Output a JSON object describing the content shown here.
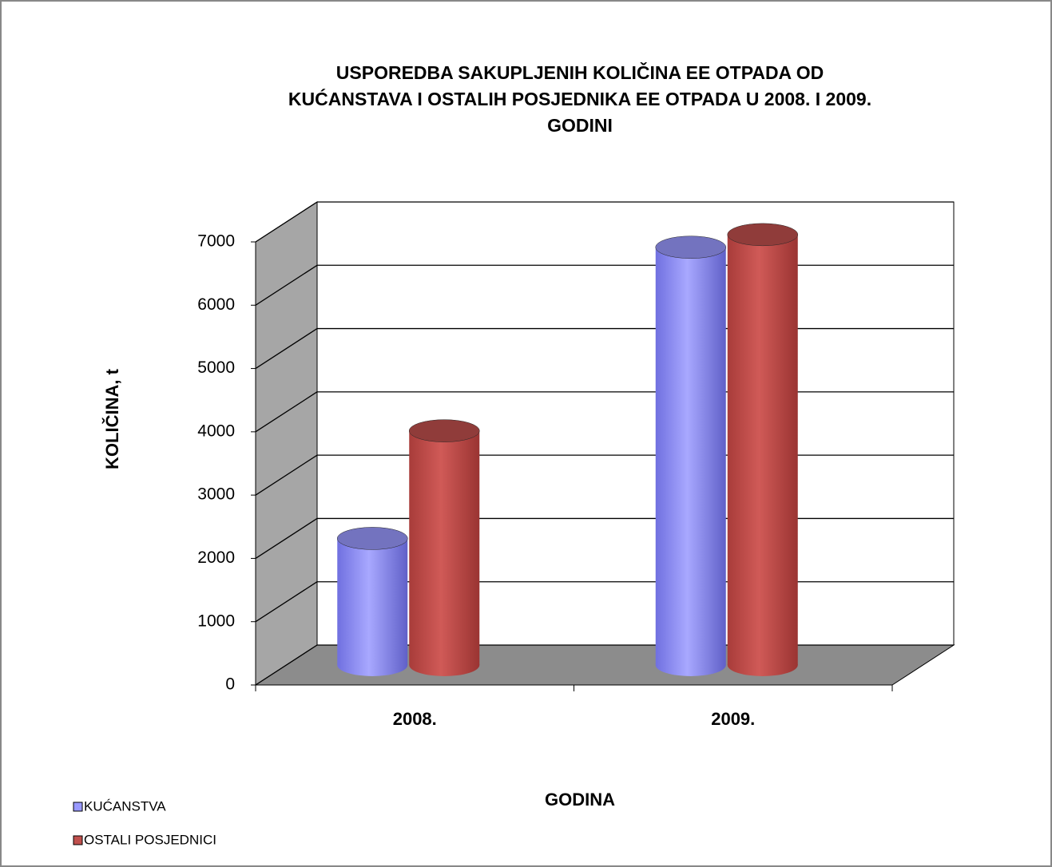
{
  "chart_data": {
    "type": "bar3d_cylinder",
    "title": [
      "USPOREDBA SAKUPLJENIH KOLIČINA EE OTPADA OD",
      "KUĆANSTAVA I OSTALIH POSJEDNIKA EE OTPADA U 2008. I 2009.",
      "GODINI"
    ],
    "x_label": "GODINA",
    "y_label": "KOLIČINA, t",
    "categories": [
      "2008.",
      "2009."
    ],
    "series": [
      {
        "name": "KUĆANSTVA",
        "color": "#9999ff",
        "values": [
          2000,
          6600
        ]
      },
      {
        "name": "OSTALI POSJEDNICI",
        "color": "#c0504d",
        "values": [
          3700,
          6800
        ]
      }
    ],
    "ylim": [
      0,
      7000
    ],
    "yticks": [
      0,
      1000,
      2000,
      3000,
      4000,
      5000,
      6000,
      7000
    ],
    "grid": true,
    "legend": "bottom-left"
  }
}
